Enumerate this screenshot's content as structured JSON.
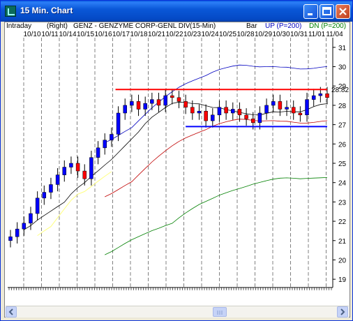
{
  "window": {
    "title": "15 Min. Chart",
    "icon": "chart-app-icon",
    "buttons": [
      "minimize-icon",
      "maximize-icon",
      "close-icon"
    ]
  },
  "header": {
    "mode": "Intraday",
    "scale": "(Right)",
    "symbol": "GENZ - GENZYME CORP-GENL DIV",
    "interval": "(15-Min)",
    "style": "Bar",
    "up": "UP (P=200)",
    "dn": "DN (P=200)"
  },
  "colors": {
    "up_bar": "#0000ff",
    "down_bar": "#ff0000",
    "resistance_line": "#ff0000",
    "support_line": "#0000ff",
    "upper_band": "#0000c0",
    "lower_band": "#008000",
    "ma_fast": "#000000",
    "ma_slow": "#c00000",
    "trend_line": "#ffff80"
  },
  "chart_data": {
    "type": "bar",
    "title": "GENZ - GENZYME CORP-GENL DIV (15-Min)",
    "xlabel": "",
    "ylabel": "",
    "x_tick_labels": [
      "10/10",
      "10/11",
      "10/14",
      "10/15",
      "10/16",
      "10/17",
      "10/18",
      "10/21",
      "10/22",
      "10/23",
      "10/24",
      "10/25",
      "10/28",
      "10/29",
      "10/30",
      "10/31",
      "11/01",
      "11/04"
    ],
    "y_tick_labels": [
      "19",
      "20",
      "21",
      "22",
      "23",
      "24",
      "25",
      "26",
      "27",
      "28",
      "29",
      "30",
      "31"
    ],
    "ylim": [
      18.5,
      31.5
    ],
    "last_price_label": "28.82",
    "last_price": 28.82,
    "resistance_level": 28.82,
    "support_level": 26.9,
    "close_series": [
      21.2,
      21.6,
      21.9,
      22.4,
      23.2,
      23.5,
      23.9,
      24.4,
      24.8,
      25.0,
      24.6,
      24.2,
      25.3,
      25.8,
      26.2,
      26.5,
      27.6,
      28.0,
      28.2,
      27.8,
      28.1,
      28.3,
      28.0,
      28.5,
      28.4,
      28.2,
      27.9,
      27.6,
      27.7,
      27.2,
      27.5,
      27.9,
      27.6,
      27.8,
      27.5,
      27.3,
      27.1,
      27.6,
      28.0,
      28.2,
      27.8,
      27.9,
      27.6,
      27.5,
      28.3,
      28.5,
      28.6,
      28.4
    ],
    "grid": true,
    "legend": "top"
  }
}
